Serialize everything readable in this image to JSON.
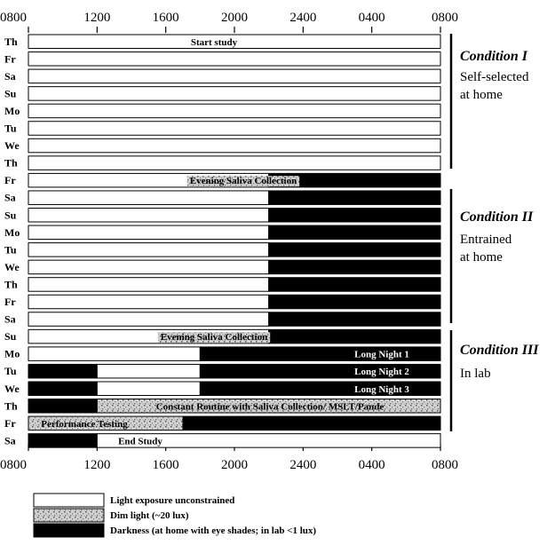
{
  "x_ticks": [
    "0800",
    "1200",
    "1600",
    "2000",
    "2400",
    "0400",
    "0800"
  ],
  "days": [
    "Th",
    "Fr",
    "Sa",
    "Su",
    "Mo",
    "Tu",
    "We",
    "Th",
    "Fr",
    "Sa",
    "Su",
    "Mo",
    "Tu",
    "We",
    "Th",
    "Fr",
    "Sa",
    "Su",
    "Mo",
    "Tu",
    "We",
    "Th",
    "Fr",
    "Sa"
  ],
  "bar_labels": [
    {
      "day_index": 0,
      "text": "Start study"
    },
    {
      "day_index": 8,
      "text": "Evening Saliva Collection"
    },
    {
      "day_index": 17,
      "text": "Evening Saliva Collection"
    },
    {
      "day_index": 18,
      "text": "Long Night 1"
    },
    {
      "day_index": 19,
      "text": "Long Night 2"
    },
    {
      "day_index": 20,
      "text": "Long Night 3"
    },
    {
      "day_index": 21,
      "text": "Constant Routine with Saliva Collection/ MSLT/Pande"
    },
    {
      "day_index": 22,
      "text": "Performance Testing"
    },
    {
      "day_index": 23,
      "text": "End Study"
    }
  ],
  "conditions": [
    {
      "title": "Condition I",
      "desc_line1": "Self-selected",
      "desc_line2": "at home"
    },
    {
      "title": "Condition II",
      "desc_line1": "Entrained",
      "desc_line2": "at home"
    },
    {
      "title": "Condition III",
      "desc_line1": "In lab",
      "desc_line2": ""
    }
  ],
  "legend": [
    {
      "type": "light",
      "label": "Light exposure unconstrained"
    },
    {
      "type": "dim",
      "label": "Dim light (~20 lux)"
    },
    {
      "type": "dark",
      "label": "Darkness (at home with eye shades; in lab <1 lux)"
    }
  ],
  "schedule": [
    [
      [
        "light",
        8,
        32
      ]
    ],
    [
      [
        "light",
        8,
        32
      ]
    ],
    [
      [
        "light",
        8,
        32
      ]
    ],
    [
      [
        "light",
        8,
        32
      ]
    ],
    [
      [
        "light",
        8,
        32
      ]
    ],
    [
      [
        "light",
        8,
        32
      ]
    ],
    [
      [
        "light",
        8,
        32
      ]
    ],
    [
      [
        "light",
        8,
        32
      ]
    ],
    [
      [
        "light",
        8,
        22
      ],
      [
        "dark",
        22,
        32
      ]
    ],
    [
      [
        "light",
        8,
        22
      ],
      [
        "dark",
        22,
        32
      ]
    ],
    [
      [
        "light",
        8,
        22
      ],
      [
        "dark",
        22,
        32
      ]
    ],
    [
      [
        "light",
        8,
        22
      ],
      [
        "dark",
        22,
        32
      ]
    ],
    [
      [
        "light",
        8,
        22
      ],
      [
        "dark",
        22,
        32
      ]
    ],
    [
      [
        "light",
        8,
        22
      ],
      [
        "dark",
        22,
        32
      ]
    ],
    [
      [
        "light",
        8,
        22
      ],
      [
        "dark",
        22,
        32
      ]
    ],
    [
      [
        "light",
        8,
        22
      ],
      [
        "dark",
        22,
        32
      ]
    ],
    [
      [
        "light",
        8,
        22
      ],
      [
        "dark",
        22,
        32
      ]
    ],
    [
      [
        "light",
        8,
        22
      ],
      [
        "dark",
        22,
        32
      ]
    ],
    [
      [
        "light",
        8,
        18
      ],
      [
        "dark",
        18,
        32
      ]
    ],
    [
      [
        "dark",
        8,
        12
      ],
      [
        "light",
        12,
        18
      ],
      [
        "dark",
        18,
        32
      ]
    ],
    [
      [
        "dark",
        8,
        12
      ],
      [
        "light",
        12,
        18
      ],
      [
        "dark",
        18,
        32
      ]
    ],
    [
      [
        "dark",
        8,
        12
      ],
      [
        "dim",
        12,
        32
      ]
    ],
    [
      [
        "dim",
        8,
        17
      ],
      [
        "dark",
        17,
        32
      ]
    ],
    [
      [
        "dark",
        8,
        12
      ],
      [
        "light",
        12,
        32
      ]
    ]
  ]
}
